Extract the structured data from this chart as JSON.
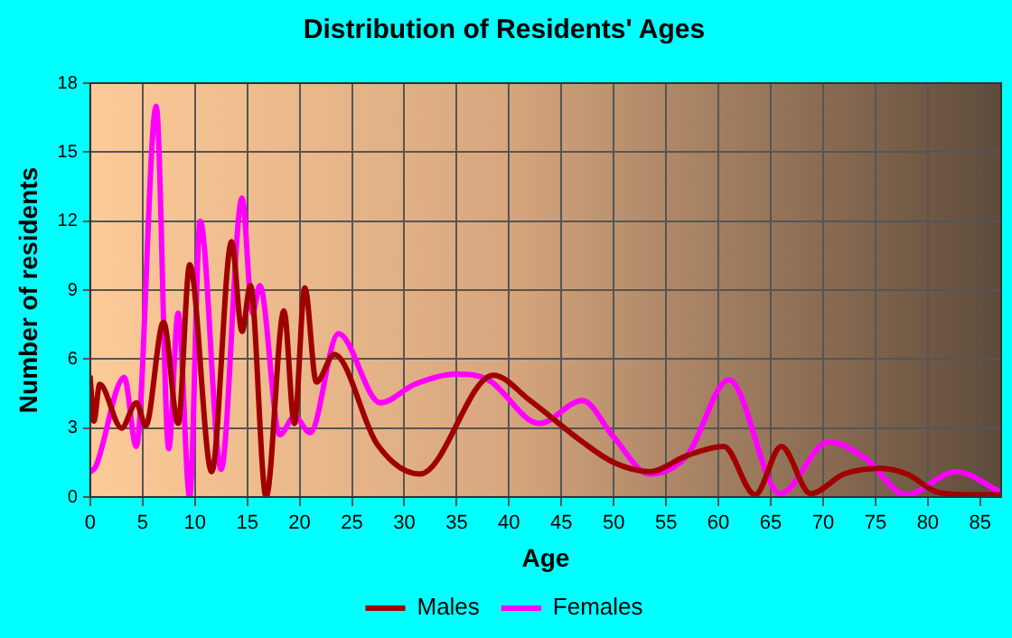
{
  "chart_data": {
    "type": "line",
    "title": "Distribution of Residents' Ages",
    "xlabel": "Age",
    "ylabel": "Number of residents",
    "xlim": [
      0,
      87
    ],
    "xticks": [
      0,
      5,
      10,
      15,
      20,
      25,
      30,
      35,
      40,
      45,
      50,
      55,
      60,
      65,
      70,
      75,
      80,
      85
    ],
    "ylim": [
      0,
      18
    ],
    "yticks": [
      0,
      3,
      6,
      9,
      12,
      15,
      18
    ],
    "grid": true,
    "legend": "bottom",
    "marker": "none",
    "line_style": "solid",
    "series": [
      {
        "name": "Males",
        "color": "#a00000",
        "x": [
          0,
          0.35,
          0.9,
          3,
          4.4,
          5.3,
          7,
          8.4,
          9.5,
          11.6,
          13.5,
          14.5,
          15.3,
          16.8,
          18.5,
          19.5,
          20.5,
          21.6,
          23.3,
          27.4,
          31.5,
          38.5,
          42,
          47,
          50,
          53.4,
          57,
          60.5,
          63.5,
          66,
          68.8,
          72,
          75.5,
          78,
          81,
          84,
          87
        ],
        "values": [
          5.2,
          3.3,
          4.9,
          3,
          4.1,
          3.1,
          7.6,
          3.2,
          10.1,
          1.1,
          11.1,
          7.2,
          9.2,
          0,
          8.1,
          3.2,
          9.1,
          5,
          6.2,
          2.3,
          1,
          5.3,
          4.2,
          2.4,
          1.5,
          1.1,
          1.8,
          2.2,
          0.1,
          2.2,
          0.15,
          1.0,
          1.25,
          1.0,
          0.2,
          0.1,
          0.1
        ]
      },
      {
        "name": "Females",
        "color": "#ff00ff",
        "x": [
          0,
          0.5,
          3.25,
          4.4,
          6.3,
          7.5,
          8.4,
          9.5,
          10.5,
          12.5,
          14.5,
          15.5,
          16.2,
          18.1,
          19.5,
          21,
          23.7,
          27.7,
          31,
          35,
          38,
          42.9,
          47,
          50,
          53.4,
          57,
          61,
          65.9,
          70.5,
          74,
          77.9,
          82.7,
          87
        ],
        "values": [
          1.1,
          1.3,
          5.2,
          2.2,
          17,
          2.1,
          8,
          0,
          12,
          1.2,
          13,
          8,
          9.2,
          2.7,
          3.5,
          2.8,
          7.1,
          4.1,
          4.9,
          5.35,
          5.1,
          3.2,
          4.2,
          2.6,
          1,
          1.8,
          5.1,
          0.15,
          2.4,
          1.7,
          0.1,
          1.1,
          0.2
        ]
      }
    ]
  }
}
